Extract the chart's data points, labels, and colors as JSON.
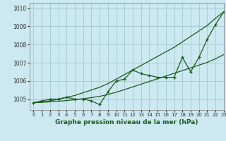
{
  "title": "Graphe pression niveau de la mer (hPa)",
  "bg_color": "#cce8f0",
  "grid_color": "#aaccd8",
  "line_color": "#1a5c1a",
  "xlim": [
    -0.5,
    23
  ],
  "ylim": [
    1004.4,
    1010.3
  ],
  "yticks": [
    1005,
    1006,
    1007,
    1008,
    1009,
    1010
  ],
  "xticks": [
    0,
    1,
    2,
    3,
    4,
    5,
    6,
    7,
    8,
    9,
    10,
    11,
    12,
    13,
    14,
    15,
    16,
    17,
    18,
    19,
    20,
    21,
    22,
    23
  ],
  "main_data": [
    1004.8,
    1004.9,
    1005.0,
    1005.0,
    1005.1,
    1005.0,
    1005.0,
    1004.9,
    1004.7,
    1005.4,
    1006.0,
    1006.1,
    1006.6,
    1006.4,
    1006.3,
    1006.2,
    1006.2,
    1006.2,
    1007.3,
    1006.5,
    1007.3,
    1008.3,
    1009.1,
    1009.8
  ],
  "smooth_upper": [
    1004.8,
    1004.85,
    1004.9,
    1005.0,
    1005.1,
    1005.2,
    1005.35,
    1005.5,
    1005.65,
    1005.85,
    1006.1,
    1006.35,
    1006.6,
    1006.85,
    1007.1,
    1007.35,
    1007.6,
    1007.85,
    1008.15,
    1008.45,
    1008.75,
    1009.05,
    1009.45,
    1009.8
  ],
  "smooth_lower": [
    1004.8,
    1004.82,
    1004.85,
    1004.88,
    1004.92,
    1004.97,
    1005.02,
    1005.08,
    1005.15,
    1005.25,
    1005.38,
    1005.52,
    1005.67,
    1005.82,
    1005.97,
    1006.12,
    1006.27,
    1006.42,
    1006.57,
    1006.72,
    1006.87,
    1007.02,
    1007.22,
    1007.45
  ]
}
